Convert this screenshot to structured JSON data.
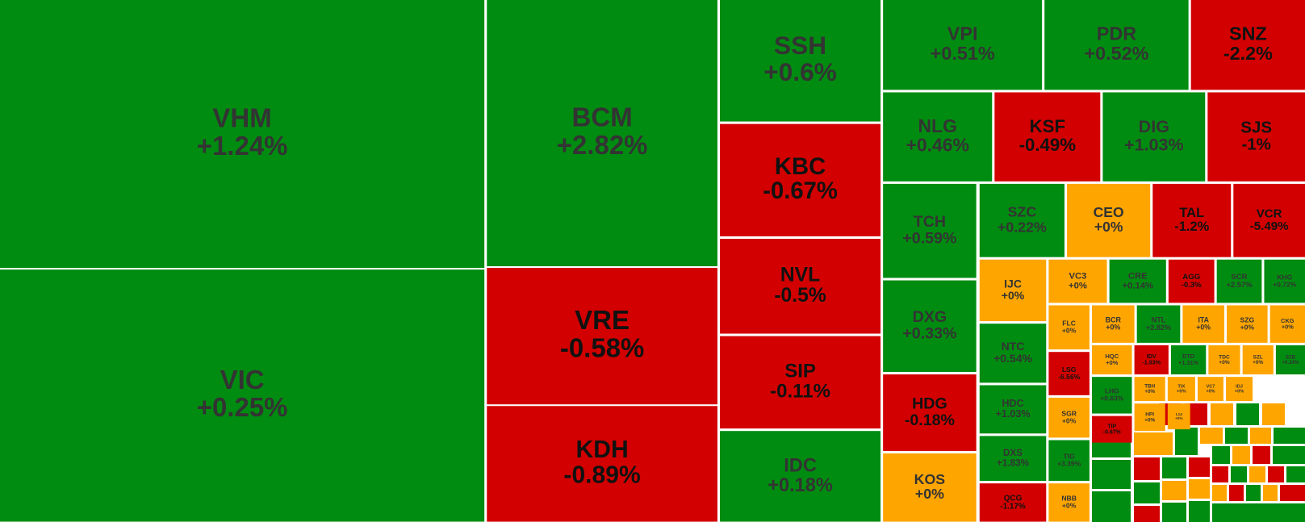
{
  "chart_data": {
    "type": "treemap",
    "categories": [
      "VHM",
      "VIC",
      "BCM",
      "VRE",
      "KDH",
      "SSH",
      "KBC",
      "NVL",
      "SIP",
      "IDC",
      "VPI",
      "PDR",
      "SNZ",
      "NLG",
      "KSF",
      "DIG",
      "SJS",
      "TCH",
      "DXG",
      "HDG",
      "KOS",
      "SZC",
      "CEO",
      "TAL",
      "VCR",
      "IJC",
      "VC3",
      "CRE",
      "AGG",
      "SCR",
      "KHG",
      "FLC",
      "BCR",
      "NTL",
      "ITA",
      "SZG",
      "CKG",
      "NTC",
      "LSG",
      "HQC",
      "IDV",
      "DTD",
      "TDC",
      "SZL",
      "SZB",
      "HDC",
      "DXS",
      "QCG",
      "SGR",
      "TIG",
      "NBB",
      "LHG",
      "TIP",
      "TBH",
      "TIX",
      "VC7",
      "IDJ",
      "HPI",
      "L14"
    ],
    "values": [
      1.24,
      0.25,
      2.82,
      -0.58,
      -0.89,
      0.6,
      -0.67,
      -0.5,
      -0.11,
      0.18,
      0.51,
      0.52,
      -2.2,
      0.46,
      -0.49,
      1.03,
      -1,
      0.59,
      0.33,
      -0.18,
      0,
      0.22,
      0,
      -1.2,
      -5.49,
      0,
      0,
      0.14,
      -0.3,
      2.57,
      0.72,
      0,
      0,
      2.82,
      0,
      0,
      0,
      0.54,
      -6.56,
      0,
      -1.93,
      1.31,
      0,
      0,
      0.24,
      1.03,
      1.83,
      -1.17,
      0,
      3.39,
      0,
      0.63,
      -0.67,
      0,
      0,
      0,
      0,
      0,
      0
    ],
    "value_labels": [
      "+1.24%",
      "+0.25%",
      "+2.82%",
      "-0.58%",
      "-0.89%",
      "+0.6%",
      "-0.67%",
      "-0.5%",
      "-0.11%",
      "+0.18%",
      "+0.51%",
      "+0.52%",
      "-2.2%",
      "+0.46%",
      "-0.49%",
      "+1.03%",
      "-1%",
      "+0.59%",
      "+0.33%",
      "-0.18%",
      "+0%",
      "+0.22%",
      "+0%",
      "-1.2%",
      "-5.49%",
      "+0%",
      "+0%",
      "+0.14%",
      "-0.3%",
      "+2.57%",
      "+0.72%",
      "+0%",
      "+0%",
      "+2.82%",
      "+0%",
      "+0%",
      "+0%",
      "+0.54%",
      "-6.56%",
      "+0%",
      "-1.93%",
      "+1.31%",
      "+0%",
      "+0%",
      "+0.24%",
      "+1.03%",
      "+1.83%",
      "-1.17%",
      "+0%",
      "+3.39%",
      "+0%",
      "+0.63%",
      "-0.67%",
      "+0%",
      "+0%",
      "+0%",
      "+0%",
      "+0%",
      "+0%"
    ],
    "colors": {
      "up": "#008c10",
      "down": "#d20000",
      "flat": "#ffa500"
    }
  }
}
